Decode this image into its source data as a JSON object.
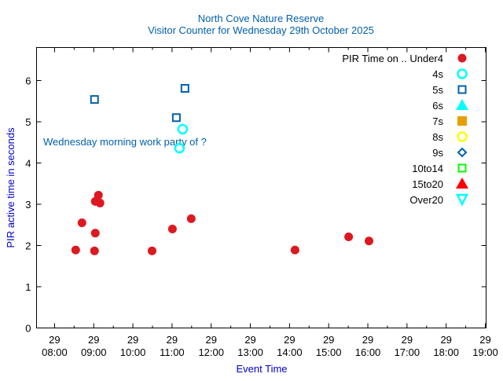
{
  "chart_data": {
    "type": "scatter",
    "title": "North Cove Nature Reserve",
    "subtitle": "Visitor Counter for Wednesday 29th October 2025",
    "xlabel": "Event Time",
    "ylabel": "PIR active time in seconds",
    "xlim_hours": [
      7.54,
      19.02
    ],
    "ylim": [
      0,
      6.8
    ],
    "grid": false,
    "legend_placement": "top-right",
    "legend_title": "PIR Time on ..",
    "x_ticks": [
      {
        "h": 8,
        "day": "29",
        "time": "08:00"
      },
      {
        "h": 9,
        "day": "29",
        "time": "09:00"
      },
      {
        "h": 10,
        "day": "29",
        "time": "10:00"
      },
      {
        "h": 11,
        "day": "29",
        "time": "11:00"
      },
      {
        "h": 12,
        "day": "29",
        "time": "12:00"
      },
      {
        "h": 13,
        "day": "29",
        "time": "13:00"
      },
      {
        "h": 14,
        "day": "29",
        "time": "14:00"
      },
      {
        "h": 15,
        "day": "29",
        "time": "15:00"
      },
      {
        "h": 16,
        "day": "29",
        "time": "16:00"
      },
      {
        "h": 17,
        "day": "29",
        "time": "17:00"
      },
      {
        "h": 18,
        "day": "29",
        "time": "18:00"
      },
      {
        "h": 19,
        "day": "29",
        "time": "19:00"
      }
    ],
    "y_ticks": [
      "0",
      "1",
      "2",
      "3",
      "4",
      "5",
      "6"
    ],
    "annotation": {
      "text": "Wednesday morning work party of ?",
      "x_hours": 8.27,
      "y": 4.5
    },
    "series": [
      {
        "name": "Under4",
        "marker": "filled-circle",
        "color": "#dd181f",
        "points": [
          [
            8.54,
            1.89
          ],
          [
            8.7,
            2.55
          ],
          [
            9.02,
            1.87
          ],
          [
            9.04,
            2.3
          ],
          [
            9.04,
            3.07
          ],
          [
            9.12,
            3.22
          ],
          [
            9.16,
            3.03
          ],
          [
            10.49,
            1.87
          ],
          [
            11.01,
            2.4
          ],
          [
            11.49,
            2.65
          ],
          [
            14.14,
            1.89
          ],
          [
            15.51,
            2.21
          ],
          [
            16.03,
            2.11
          ]
        ]
      },
      {
        "name": "4s",
        "marker": "open-circle",
        "color": "#00ffff",
        "points": [
          [
            11.27,
            4.82
          ],
          [
            11.19,
            4.36
          ]
        ]
      },
      {
        "name": "5s",
        "marker": "open-square",
        "color": "#0060ad",
        "points": [
          [
            9.02,
            5.54
          ],
          [
            11.11,
            5.1
          ],
          [
            11.33,
            5.81
          ]
        ]
      },
      {
        "name": "6s",
        "marker": "filled-triangle",
        "color": "#00ffff",
        "points": []
      },
      {
        "name": "7s",
        "marker": "filled-square",
        "color": "#e69f00",
        "points": []
      },
      {
        "name": "8s",
        "marker": "open-circle",
        "color": "#ffff00",
        "points": []
      },
      {
        "name": "9s",
        "marker": "open-diamond",
        "color": "#0060ad",
        "points": []
      },
      {
        "name": "10to14",
        "marker": "open-square",
        "color": "#00ff00",
        "points": []
      },
      {
        "name": "15to20",
        "marker": "filled-triangle",
        "color": "#ff0000",
        "points": []
      },
      {
        "name": "Over20",
        "marker": "open-triangle-down",
        "color": "#00ffff",
        "points": []
      }
    ]
  }
}
